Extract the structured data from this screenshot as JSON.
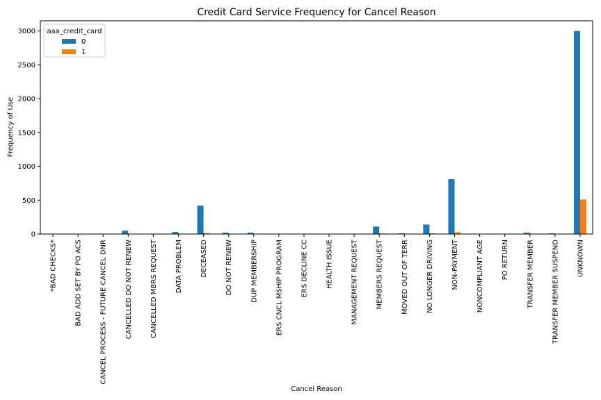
{
  "chart_data": {
    "type": "bar",
    "title": "Credit Card Service Frequency for Cancel Reason",
    "xlabel": "Cancel Reason",
    "ylabel": "Frequency of Use",
    "ylim": [
      0,
      3150
    ],
    "yticks": [
      0,
      500,
      1000,
      1500,
      2000,
      2500,
      3000
    ],
    "grid": false,
    "legend": {
      "title": "aaa_credit_card",
      "placement": "top-left"
    },
    "categories": [
      "*BAD CHECKS*",
      "BAD ADD SET BY PO ACS",
      "CANCEL PROCESS - FUTURE CANCEL DNR",
      "CANCELLED DO NOT RENEW",
      "CANCELLED MBRS REQUEST",
      "DATA PROBLEM",
      "DECEASED",
      "DO NOT RENEW",
      "DUP MEMBERSHIP",
      "ERS CNCL MSHIP PROGRAM",
      "ERS DECLINE CC",
      "HEALTH ISSUE",
      "MANAGEMENT REQUEST",
      "MEMBERS REQUEST",
      "MOVED OUT OF TERR",
      "NO LONGER DRIVING",
      "NON-PAYMENT",
      "NONCOMPLIANT AGE",
      "PO RETURN",
      "TRANSFER MEMBER",
      "TRANSFER MEMBER SUSPEND",
      "UNKNOWN"
    ],
    "series": [
      {
        "name": "0",
        "color": "#1f77b4",
        "values": [
          1,
          1,
          1,
          50,
          1,
          30,
          420,
          20,
          20,
          1,
          1,
          1,
          1,
          110,
          10,
          140,
          810,
          1,
          1,
          20,
          10,
          3000
        ]
      },
      {
        "name": "1",
        "color": "#ff7f0e",
        "values": [
          0,
          0,
          0,
          3,
          0,
          3,
          15,
          2,
          2,
          0,
          0,
          0,
          0,
          10,
          2,
          10,
          25,
          0,
          0,
          3,
          2,
          510
        ]
      }
    ]
  }
}
